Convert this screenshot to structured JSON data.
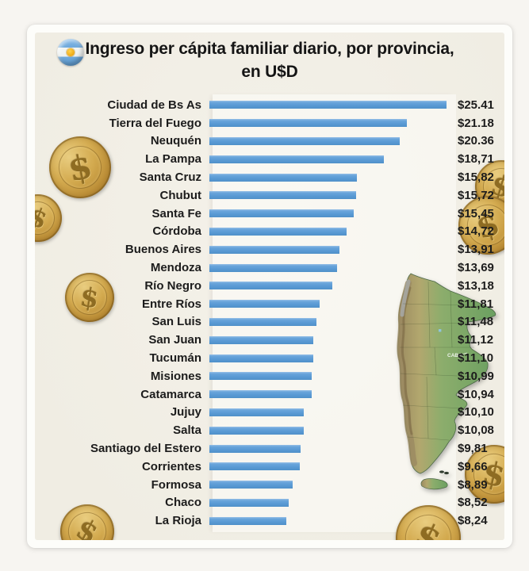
{
  "title": {
    "line1": "Ingreso per cápita familiar diario, por provincia,",
    "line2": "en U$D"
  },
  "chart_data": {
    "type": "bar",
    "orientation": "horizontal",
    "title": "Ingreso per cápita familiar diario, por provincia, en U$D",
    "xlabel": "",
    "ylabel": "",
    "xlim": [
      0,
      25.41
    ],
    "grid": false,
    "legend": false,
    "bar_color": "#5b9bd5",
    "categories": [
      "Ciudad de Bs As",
      "Tierra del Fuego",
      "Neuquén",
      "La Pampa",
      "Santa Cruz",
      "Chubut",
      "Santa Fe",
      "Córdoba",
      "Buenos Aires",
      "Mendoza",
      "Río Negro",
      "Entre Ríos",
      "San Luis",
      "San Juan",
      "Tucumán",
      "Misiones",
      "Catamarca",
      "Jujuy",
      "Salta",
      "Santiago del Estero",
      "Corrientes",
      "Formosa",
      "Chaco",
      "La Rioja"
    ],
    "values": [
      25.41,
      21.18,
      20.36,
      18.71,
      15.82,
      15.72,
      15.45,
      14.72,
      13.91,
      13.69,
      13.18,
      11.81,
      11.48,
      11.12,
      11.1,
      10.99,
      10.94,
      10.1,
      10.08,
      9.81,
      9.66,
      8.89,
      8.52,
      8.24
    ],
    "value_labels": [
      "$25.41",
      "$21.18",
      "$20.36",
      "$18,71",
      "$15,82",
      "$15,72",
      "$15,45",
      "$14,72",
      "$13,91",
      "$13,69",
      "$13,18",
      "$11,81",
      "$11,48",
      "$11,12",
      "$11,10",
      "$10,99",
      "$10,94",
      "$10,10",
      "$10,08",
      "$9,81",
      "$9,66",
      "$8,89",
      "$8,52",
      "$8,24"
    ]
  },
  "decor": {
    "coin_dollar": "$",
    "map_caba_label": "CABA"
  },
  "colors": {
    "bar": "#5b9bd5",
    "card_bg": "#f1eee5",
    "coin_gold": "#d3aa4f",
    "flag_blue": "#74acdf",
    "sun_yellow": "#f6b40e",
    "text": "#1c1c1c"
  }
}
